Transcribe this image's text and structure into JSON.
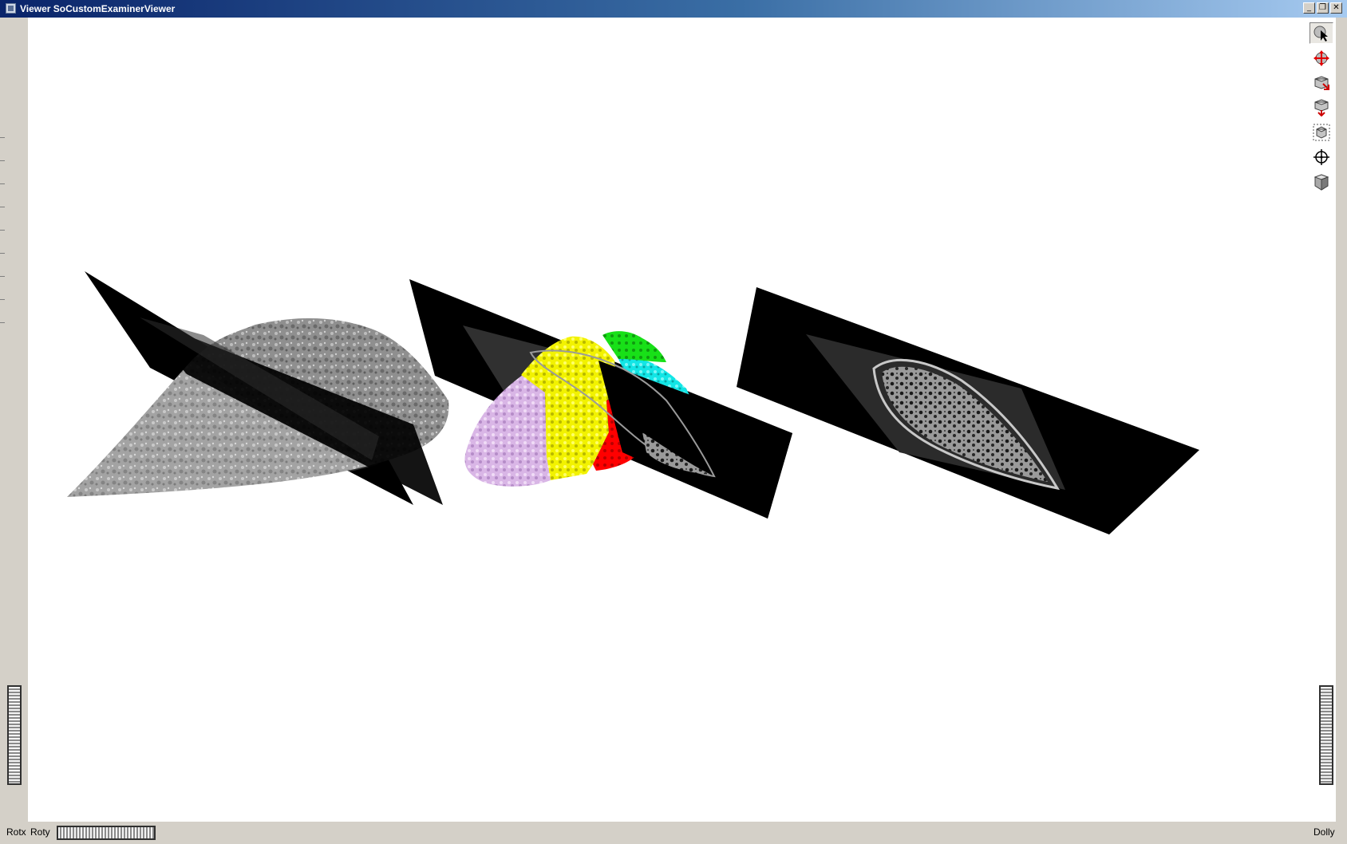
{
  "window": {
    "title": "Viewer SoCustomExaminerViewer",
    "controls": [
      "minimize-icon",
      "restore-icon",
      "close-icon"
    ],
    "minimize_glyph": "_",
    "restore_glyph": "❐",
    "close_glyph": "✕"
  },
  "toolbar": {
    "tools": [
      {
        "name": "pick-mode",
        "icon": "arrow-cursor-icon",
        "active": true
      },
      {
        "name": "view-mode",
        "icon": "rotate-view-icon",
        "active": false
      },
      {
        "name": "home",
        "icon": "home-view-icon",
        "active": false
      },
      {
        "name": "set-home",
        "icon": "set-home-icon",
        "active": false
      },
      {
        "name": "view-all",
        "icon": "view-all-icon",
        "active": false
      },
      {
        "name": "seek",
        "icon": "seek-crosshair-icon",
        "active": false
      },
      {
        "name": "projection",
        "icon": "perspective-cube-icon",
        "active": false
      }
    ]
  },
  "thumbwheels": {
    "rotx_label": "Rotx",
    "roty_label": "Roty",
    "dolly_label": "Dolly"
  },
  "scene": {
    "objects": [
      {
        "name": "gray-volume-render",
        "description_color": "#9a9a9a"
      },
      {
        "name": "segmented-lobes-render",
        "colors": [
          "#e8c8f0",
          "#ffff00",
          "#ff0000",
          "#00ffff",
          "#00ff00",
          "#ff00ff"
        ]
      },
      {
        "name": "ct-slice-plane",
        "description_color": "#000000"
      }
    ]
  },
  "colors": {
    "title_gradient_start": "#0a246a",
    "panel": "#d4d0c8",
    "viewport_bg": "#ffffff"
  }
}
